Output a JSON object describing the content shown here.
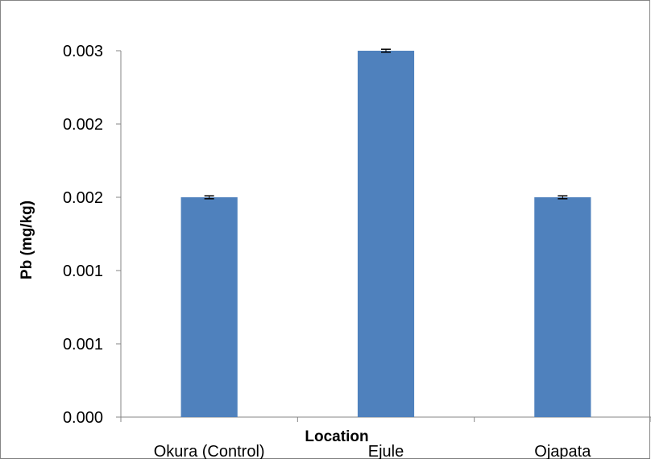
{
  "chart_data": {
    "type": "bar",
    "title": "",
    "xlabel": "Location",
    "ylabel": "Pb (mg/kg)",
    "categories": [
      "Okura (Control)",
      "Ejule",
      "Ojapata"
    ],
    "values": [
      0.0015,
      0.0025,
      0.0015
    ],
    "error": [
      1e-05,
      1e-05,
      1e-05
    ],
    "y_ticks": [
      0,
      0.0005,
      0.001,
      0.0015,
      0.002,
      0.0025
    ],
    "y_tick_labels": [
      "0.000",
      "0.001",
      "0.001",
      "0.002",
      "0.002",
      "0.003"
    ],
    "ylim": [
      0,
      0.0025
    ],
    "grid": false,
    "legend": "none",
    "bar_color": "#4F81BD",
    "axis_color": "#868686"
  }
}
